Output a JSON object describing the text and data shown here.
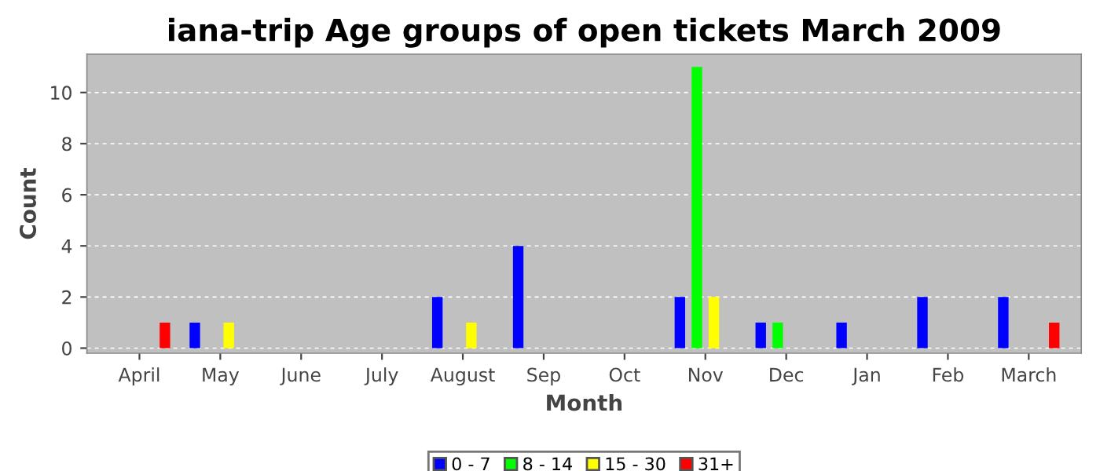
{
  "chart_data": {
    "type": "bar",
    "title": "iana-trip Age groups of open tickets March 2009",
    "xlabel": "Month",
    "ylabel": "Count",
    "categories": [
      "April",
      "May",
      "June",
      "July",
      "August",
      "Sep",
      "Oct",
      "Nov",
      "Dec",
      "Jan",
      "Feb",
      "March"
    ],
    "series": [
      {
        "name": "0 - 7",
        "color": "#0000ff",
        "values": [
          0,
          1,
          0,
          0,
          2,
          4,
          0,
          2,
          1,
          1,
          2,
          2
        ]
      },
      {
        "name": "8 - 14",
        "color": "#00ff00",
        "values": [
          0,
          0,
          0,
          0,
          0,
          0,
          0,
          11,
          1,
          0,
          0,
          0
        ]
      },
      {
        "name": "15 - 30",
        "color": "#ffff00",
        "values": [
          0,
          1,
          0,
          0,
          1,
          0,
          0,
          2,
          0,
          0,
          0,
          0
        ]
      },
      {
        "name": "31+",
        "color": "#ff0000",
        "values": [
          1,
          0,
          0,
          0,
          0,
          0,
          0,
          0,
          0,
          0,
          0,
          1
        ]
      }
    ],
    "ylim": [
      -0.2,
      11.5
    ],
    "yticks": [
      0,
      2,
      4,
      6,
      8,
      10
    ],
    "grid": "y",
    "legend": "bottom"
  }
}
